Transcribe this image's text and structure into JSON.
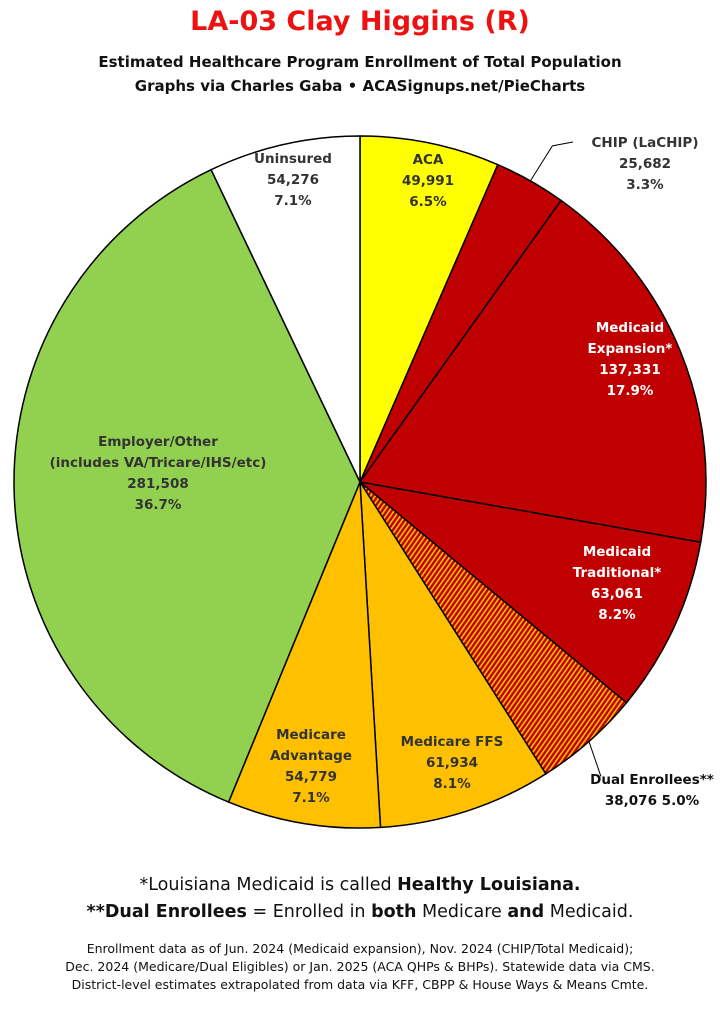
{
  "header": {
    "title": "LA-03 Clay Higgins (R)",
    "subtitle_line1": "Estimated Healthcare Program Enrollment of Total Population",
    "subtitle_line2": "Graphs via Charles Gaba  •  ACASignups.net/PieCharts"
  },
  "notes": {
    "line1_a": "*Louisiana Medicaid is called ",
    "line1_b": "Healthy Louisiana.",
    "line2_a": "**Dual Enrollees",
    "line2_b": " = Enrolled in ",
    "line2_c": "both",
    "line2_d": " Medicare ",
    "line2_e": "and",
    "line2_f": " Medicaid."
  },
  "footer": {
    "line1": "Enrollment data as of Jun. 2024 (Medicaid expansion), Nov. 2024 (CHIP/Total Medicaid);",
    "line2": "Dec. 2024 (Medicare/Dual Eligibles) or Jan. 2025 (ACA QHPs & BHPs). Statewide data via CMS.",
    "line3": "District-level estimates extrapolated from data via KFF, CBPP & House Ways & Means Cmte."
  },
  "chart_data": {
    "type": "pie",
    "title": "LA-03 Clay Higgins (R)",
    "slices": [
      {
        "label": [
          "ACA"
        ],
        "value": 49991,
        "value_text": "49,991",
        "percent": "6.5%",
        "color": "#ffff00",
        "text_color": "#333333"
      },
      {
        "label": [
          "CHIP (LaCHIP)"
        ],
        "value": 25682,
        "value_text": "25,682",
        "percent": "3.3%",
        "color": "#c00000",
        "text_color": "#333333",
        "outside": true
      },
      {
        "label": [
          "Medicaid",
          "Expansion*"
        ],
        "value": 137331,
        "value_text": "137,331",
        "percent": "17.9%",
        "color": "#c00000",
        "text_color": "#ffffff"
      },
      {
        "label": [
          "Medicaid",
          "Traditional*"
        ],
        "value": 63061,
        "value_text": "63,061",
        "percent": "8.2%",
        "color": "#c00000",
        "text_color": "#ffffff"
      },
      {
        "label": [
          "Dual Enrollees**"
        ],
        "value": 38076,
        "value_text": "38,076",
        "percent": "5.0%",
        "color": "#c00000",
        "pattern": "stripes",
        "text_color": "#111111",
        "outside": true
      },
      {
        "label": [
          "Medicare FFS"
        ],
        "value": 61934,
        "value_text": "61,934",
        "percent": "8.1%",
        "color": "#ffc000",
        "text_color": "#333333"
      },
      {
        "label": [
          "Medicare",
          "Advantage"
        ],
        "value": 54779,
        "value_text": "54,779",
        "percent": "7.1%",
        "color": "#ffc000",
        "text_color": "#333333"
      },
      {
        "label": [
          "Employer/Other",
          "(includes VA/Tricare/IHS/etc)"
        ],
        "value": 281508,
        "value_text": "281,508",
        "percent": "36.7%",
        "color": "#92d050",
        "text_color": "#333333"
      },
      {
        "label": [
          "Uninsured"
        ],
        "value": 54276,
        "value_text": "54,276",
        "percent": "7.1%",
        "color": "#ffffff",
        "text_color": "#333333"
      }
    ]
  }
}
